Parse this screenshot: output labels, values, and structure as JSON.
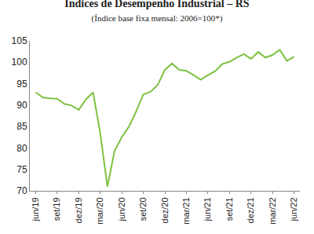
{
  "chart_data": {
    "type": "line",
    "title": "Índices de Desempenho Industrial – RS",
    "subtitle": "(Índice base fixa mensal: 2006=100*)",
    "categories": [
      "jun/19",
      null,
      null,
      "set/19",
      null,
      null,
      "dez/19",
      null,
      null,
      "mar/20",
      null,
      null,
      "jun/20",
      null,
      null,
      "set/20",
      null,
      null,
      "dez/20",
      null,
      null,
      "mar/21",
      null,
      null,
      "jun/21",
      null,
      null,
      "set/21",
      null,
      null,
      "dez/21",
      null,
      null,
      "mar/22",
      null,
      null,
      "jun/22"
    ],
    "values": [
      93,
      91.8,
      91.6,
      91.5,
      90.3,
      89.9,
      88.9,
      91.3,
      93,
      83.5,
      71,
      79.3,
      82.5,
      85,
      88.5,
      92.5,
      93.1,
      94.7,
      98.2,
      99.7,
      98.2,
      98,
      97,
      95.9,
      97,
      97.9,
      99.6,
      100.1,
      101.1,
      101.9,
      100.8,
      102.4,
      101.1,
      101.7,
      102.9,
      100.3,
      101.3
    ],
    "color": "#7dc242",
    "ylim": [
      70,
      105
    ],
    "yticks": [
      70,
      75,
      80,
      85,
      90,
      95,
      100,
      105
    ],
    "grid": false
  }
}
